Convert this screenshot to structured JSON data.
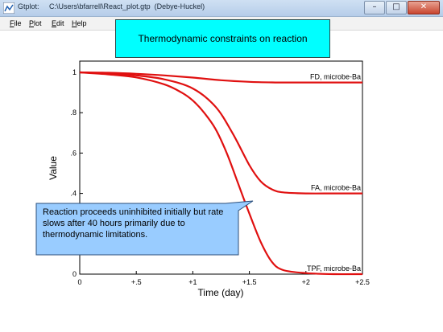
{
  "window": {
    "app_name": "Gtplot:",
    "path": "C:\\Users\\bfarrell\\React_plot.gtp",
    "mode": "(Debye-Huckel)",
    "controls": {
      "minimize": "–",
      "maximize": "□",
      "close": "✕"
    }
  },
  "menu": [
    {
      "first": "F",
      "rest": "ile"
    },
    {
      "first": "P",
      "rest": "lot"
    },
    {
      "first": "E",
      "rest": "dit"
    },
    {
      "first": "H",
      "rest": "elp"
    }
  ],
  "banner": {
    "text": "Thermodynamic constraints on reaction"
  },
  "callout": {
    "text": "Reaction proceeds uninhibited initially but rate slows after 40 hours primarily due to thermodynamic limitations.",
    "color": "#99ccff"
  },
  "chart_data": {
    "type": "line",
    "xlabel": "Time (day)",
    "ylabel": "Value",
    "xlim": [
      0,
      2.5
    ],
    "ylim": [
      0,
      1
    ],
    "xticks": [
      0,
      0.5,
      1,
      1.5,
      2,
      2.5
    ],
    "xtick_labels": [
      "0",
      "+.5",
      "+1",
      "+1.5",
      "+2",
      "+2.5"
    ],
    "yticks": [
      0,
      0.2,
      0.4,
      0.6,
      0.8,
      1
    ],
    "ytick_labels": [
      "0",
      "",
      ".4",
      ".6",
      ".8",
      "1"
    ],
    "line_color": "#e01010",
    "series": [
      {
        "name": "FD, microbe-Ba",
        "x": [
          0,
          0.25,
          0.5,
          0.75,
          1.0,
          1.25,
          1.5,
          1.75,
          2.0,
          2.25,
          2.5
        ],
        "values": [
          1,
          0.998,
          0.993,
          0.985,
          0.974,
          0.961,
          0.953,
          0.95,
          0.95,
          0.95,
          0.95
        ]
      },
      {
        "name": "FA, microbe-Ba",
        "x": [
          0,
          0.25,
          0.5,
          0.75,
          1.0,
          1.2,
          1.35,
          1.5,
          1.6,
          1.7,
          1.8,
          2.0,
          2.25,
          2.5
        ],
        "values": [
          1,
          0.995,
          0.985,
          0.965,
          0.92,
          0.83,
          0.7,
          0.54,
          0.46,
          0.42,
          0.405,
          0.4,
          0.4,
          0.4
        ]
      },
      {
        "name": "TPF, microbe-Ba",
        "x": [
          0,
          0.25,
          0.5,
          0.75,
          0.9,
          1.0,
          1.1,
          1.2,
          1.3,
          1.4,
          1.5,
          1.6,
          1.7,
          1.8,
          2.0,
          2.25,
          2.5
        ],
        "values": [
          1,
          0.99,
          0.975,
          0.94,
          0.9,
          0.86,
          0.8,
          0.72,
          0.6,
          0.45,
          0.3,
          0.16,
          0.06,
          0.02,
          0.005,
          0,
          0
        ]
      }
    ]
  }
}
